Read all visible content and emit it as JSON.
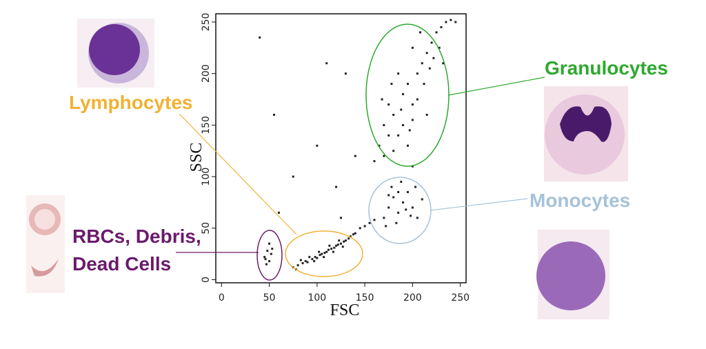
{
  "chart_data": {
    "type": "scatter",
    "xlabel": "FSC",
    "ylabel": "SSC",
    "xlim": [
      -6,
      256
    ],
    "ylim": [
      -3,
      258
    ],
    "xticks": [
      0,
      50,
      100,
      150,
      200,
      250
    ],
    "yticks": [
      0,
      50,
      100,
      150,
      200,
      250
    ],
    "color": "#222222",
    "x": [
      45,
      48,
      50,
      52,
      47,
      53,
      50,
      46,
      75,
      80,
      85,
      88,
      90,
      95,
      98,
      100,
      103,
      105,
      108,
      110,
      112,
      115,
      118,
      120,
      122,
      125,
      128,
      130,
      133,
      135,
      92,
      97,
      102,
      107,
      113,
      117,
      123,
      127,
      83,
      78,
      138,
      140,
      145,
      150,
      155,
      160,
      170,
      175,
      180,
      185,
      190,
      195,
      200,
      205,
      178,
      188,
      198,
      210,
      172,
      183,
      193,
      203,
      175,
      185,
      165,
      170,
      175,
      180,
      185,
      190,
      195,
      200,
      205,
      210,
      215,
      220,
      225,
      230,
      235,
      170,
      180,
      190,
      200,
      195,
      205,
      212,
      218,
      222,
      185,
      178,
      168,
      200,
      208,
      228,
      232,
      240,
      245,
      160,
      175,
      188,
      197,
      215,
      40,
      60,
      75,
      110,
      120,
      130,
      55,
      140,
      100,
      200,
      125
    ],
    "y": [
      22,
      28,
      18,
      25,
      15,
      30,
      35,
      20,
      12,
      14,
      16,
      18,
      17,
      20,
      22,
      21,
      24,
      25,
      26,
      27,
      29,
      30,
      31,
      33,
      34,
      35,
      37,
      38,
      40,
      42,
      22,
      18,
      27,
      22,
      33,
      27,
      38,
      32,
      19,
      10,
      44,
      45,
      50,
      52,
      55,
      58,
      60,
      70,
      80,
      65,
      75,
      85,
      70,
      60,
      90,
      95,
      62,
      78,
      52,
      55,
      68,
      90,
      82,
      85,
      130,
      150,
      170,
      160,
      140,
      180,
      190,
      170,
      200,
      210,
      220,
      230,
      240,
      245,
      250,
      120,
      125,
      150,
      155,
      130,
      175,
      190,
      205,
      215,
      200,
      190,
      175,
      225,
      240,
      225,
      210,
      252,
      250,
      115,
      140,
      165,
      145,
      160,
      235,
      65,
      100,
      210,
      90,
      200,
      160,
      120,
      130,
      110,
      60
    ],
    "annotations": [
      {
        "text": "Lymphocytes",
        "color": "#f0b232"
      },
      {
        "text": "Granulocytes",
        "color": "#2ea82e"
      },
      {
        "text": "Monocytes",
        "color": "#a6c2d8"
      },
      {
        "text": "RBCs, Debris,",
        "color": "#6b1a6b"
      },
      {
        "text": "Dead Cells",
        "color": "#6b1a6b"
      }
    ]
  }
}
